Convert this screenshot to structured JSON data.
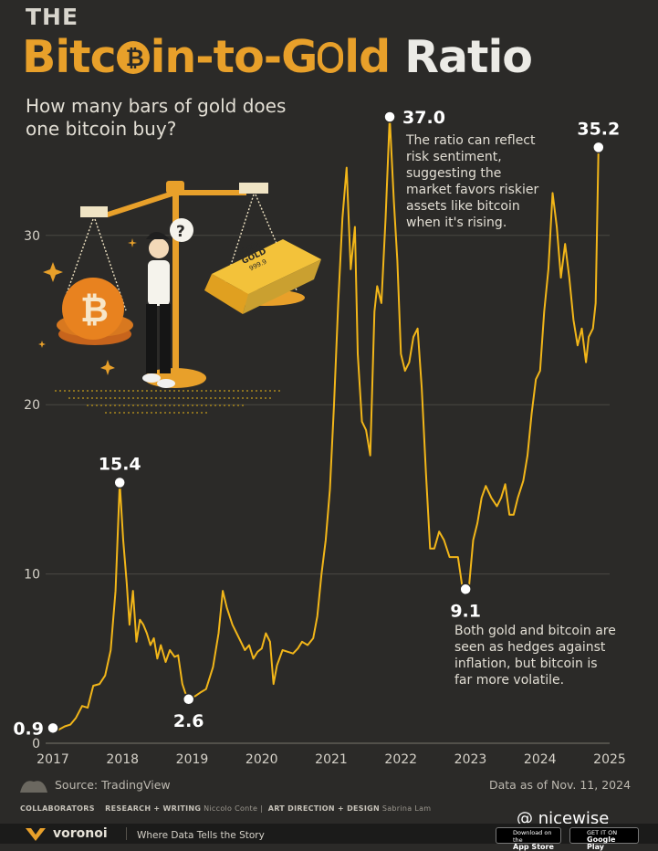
{
  "header": {
    "pre_title": "THE",
    "title_part1": "Bitc",
    "title_part2": "in-to-G",
    "title_part3": "ld",
    "title_part4": "Ratio",
    "subtitle": "How many bars of gold does one bitcoin buy?"
  },
  "chart_data": {
    "type": "line",
    "title": "The Bitcoin-to-Gold Ratio",
    "subtitle": "How many bars of gold does one bitcoin buy?",
    "xlabel": "",
    "ylabel": "",
    "xlim": [
      2017,
      2025
    ],
    "ylim": [
      0,
      37
    ],
    "x_ticks": [
      2017,
      2018,
      2019,
      2020,
      2021,
      2022,
      2023,
      2024,
      2025
    ],
    "y_ticks": [
      0,
      10,
      20,
      30
    ],
    "grid": true,
    "series": [
      {
        "name": "Bitcoin-to-Gold ratio",
        "color": "#f2b619",
        "points": [
          [
            2017.0,
            0.9
          ],
          [
            2017.08,
            0.8
          ],
          [
            2017.17,
            1.0
          ],
          [
            2017.25,
            1.1
          ],
          [
            2017.33,
            1.5
          ],
          [
            2017.42,
            2.2
          ],
          [
            2017.5,
            2.1
          ],
          [
            2017.58,
            3.4
          ],
          [
            2017.67,
            3.5
          ],
          [
            2017.75,
            4.0
          ],
          [
            2017.83,
            5.5
          ],
          [
            2017.9,
            9.0
          ],
          [
            2017.96,
            15.4
          ],
          [
            2018.01,
            12.0
          ],
          [
            2018.06,
            9.5
          ],
          [
            2018.1,
            7.0
          ],
          [
            2018.15,
            9.0
          ],
          [
            2018.2,
            6.0
          ],
          [
            2018.25,
            7.3
          ],
          [
            2018.3,
            7.0
          ],
          [
            2018.35,
            6.5
          ],
          [
            2018.4,
            5.8
          ],
          [
            2018.45,
            6.2
          ],
          [
            2018.5,
            5.0
          ],
          [
            2018.55,
            5.8
          ],
          [
            2018.62,
            4.8
          ],
          [
            2018.68,
            5.5
          ],
          [
            2018.75,
            5.1
          ],
          [
            2018.8,
            5.2
          ],
          [
            2018.86,
            3.5
          ],
          [
            2018.9,
            3.0
          ],
          [
            2018.95,
            2.6
          ],
          [
            2019.05,
            2.8
          ],
          [
            2019.12,
            3.0
          ],
          [
            2019.2,
            3.2
          ],
          [
            2019.3,
            4.5
          ],
          [
            2019.38,
            6.5
          ],
          [
            2019.44,
            9.0
          ],
          [
            2019.5,
            8.0
          ],
          [
            2019.58,
            7.0
          ],
          [
            2019.64,
            6.5
          ],
          [
            2019.7,
            6.0
          ],
          [
            2019.76,
            5.5
          ],
          [
            2019.82,
            5.8
          ],
          [
            2019.88,
            5.0
          ],
          [
            2019.94,
            5.4
          ],
          [
            2020.0,
            5.6
          ],
          [
            2020.06,
            6.5
          ],
          [
            2020.12,
            6.0
          ],
          [
            2020.17,
            3.5
          ],
          [
            2020.22,
            4.6
          ],
          [
            2020.3,
            5.5
          ],
          [
            2020.38,
            5.4
          ],
          [
            2020.45,
            5.3
          ],
          [
            2020.52,
            5.6
          ],
          [
            2020.58,
            6.0
          ],
          [
            2020.66,
            5.8
          ],
          [
            2020.74,
            6.2
          ],
          [
            2020.8,
            7.5
          ],
          [
            2020.86,
            10.0
          ],
          [
            2020.92,
            12.0
          ],
          [
            2020.98,
            15.0
          ],
          [
            2021.04,
            20.0
          ],
          [
            2021.1,
            26.0
          ],
          [
            2021.16,
            31.0
          ],
          [
            2021.22,
            34.0
          ],
          [
            2021.28,
            28.0
          ],
          [
            2021.34,
            30.5
          ],
          [
            2021.38,
            23.0
          ],
          [
            2021.44,
            19.0
          ],
          [
            2021.5,
            18.5
          ],
          [
            2021.56,
            17.0
          ],
          [
            2021.62,
            25.5
          ],
          [
            2021.66,
            27.0
          ],
          [
            2021.72,
            26.0
          ],
          [
            2021.78,
            31.0
          ],
          [
            2021.84,
            37.0
          ],
          [
            2021.9,
            32.0
          ],
          [
            2021.95,
            28.5
          ],
          [
            2022.0,
            23.0
          ],
          [
            2022.06,
            22.0
          ],
          [
            2022.12,
            22.5
          ],
          [
            2022.18,
            24.0
          ],
          [
            2022.24,
            24.5
          ],
          [
            2022.3,
            21.0
          ],
          [
            2022.36,
            16.0
          ],
          [
            2022.42,
            11.5
          ],
          [
            2022.48,
            11.5
          ],
          [
            2022.55,
            12.5
          ],
          [
            2022.62,
            12.0
          ],
          [
            2022.7,
            11.0
          ],
          [
            2022.76,
            11.0
          ],
          [
            2022.82,
            11.0
          ],
          [
            2022.88,
            9.3
          ],
          [
            2022.93,
            9.1
          ],
          [
            2022.98,
            9.3
          ],
          [
            2023.04,
            12.0
          ],
          [
            2023.1,
            13.0
          ],
          [
            2023.16,
            14.5
          ],
          [
            2023.22,
            15.2
          ],
          [
            2023.3,
            14.5
          ],
          [
            2023.38,
            14.0
          ],
          [
            2023.44,
            14.5
          ],
          [
            2023.5,
            15.3
          ],
          [
            2023.56,
            13.5
          ],
          [
            2023.62,
            13.5
          ],
          [
            2023.68,
            14.5
          ],
          [
            2023.76,
            15.5
          ],
          [
            2023.82,
            17.0
          ],
          [
            2023.88,
            19.5
          ],
          [
            2023.94,
            21.5
          ],
          [
            2024.0,
            22.0
          ],
          [
            2024.06,
            25.5
          ],
          [
            2024.12,
            28.0
          ],
          [
            2024.18,
            32.5
          ],
          [
            2024.24,
            30.5
          ],
          [
            2024.3,
            27.5
          ],
          [
            2024.36,
            29.5
          ],
          [
            2024.42,
            27.5
          ],
          [
            2024.48,
            25.0
          ],
          [
            2024.54,
            23.5
          ],
          [
            2024.6,
            24.5
          ],
          [
            2024.66,
            22.5
          ],
          [
            2024.7,
            24.0
          ],
          [
            2024.76,
            24.5
          ],
          [
            2024.8,
            26.0
          ],
          [
            2024.84,
            35.2
          ]
        ]
      }
    ],
    "annotations": [
      {
        "x": 2017.0,
        "y": 0.9,
        "label": "0.9",
        "pos": "left"
      },
      {
        "x": 2017.96,
        "y": 15.4,
        "label": "15.4",
        "pos": "above"
      },
      {
        "x": 2018.95,
        "y": 2.6,
        "label": "2.6",
        "pos": "below"
      },
      {
        "x": 2021.84,
        "y": 37.0,
        "label": "37.0",
        "pos": "right"
      },
      {
        "x": 2022.93,
        "y": 9.1,
        "label": "9.1",
        "pos": "below"
      },
      {
        "x": 2024.84,
        "y": 35.2,
        "label": "35.2",
        "pos": "above"
      }
    ],
    "notes": [
      "The ratio can reflect risk sentiment, suggesting the market favors riskier assets like bitcoin when it's rising.",
      "Both gold and bitcoin are seen as hedges against inflation, but bitcoin is far more volatile."
    ]
  },
  "note_top_lines": [
    "The ratio can reflect",
    "risk sentiment,",
    "suggesting the",
    "market favors riskier",
    "assets like bitcoin",
    "when it's rising."
  ],
  "note_bottom_lines": [
    "Both gold and bitcoin are",
    "seen as hedges against",
    "inflation, but bitcoin is",
    "far more volatile."
  ],
  "illustration": {
    "question_mark": "?",
    "bar_text_1": "FINE",
    "bar_text_2": "GOLD",
    "bar_text_3": "999.9"
  },
  "footer": {
    "source": "Source: TradingView",
    "date": "Data as of Nov. 11, 2024",
    "collab_label": "COLLABORATORS",
    "research_label": "RESEARCH + WRITING",
    "research_name": "Niccolo Conte",
    "art_label": "ART DIRECTION + DESIGN",
    "art_name": "Sabrina Lam",
    "brand": "voronoi",
    "tagline": "Where Data Tells the Story",
    "app_store_small": "Download on the",
    "app_store": "App Store",
    "google_small": "GET IT ON",
    "google": "Google Play",
    "watermark": "@ nicewise"
  },
  "colors": {
    "background": "#2b2a28",
    "line": "#f2b619",
    "accent": "#e8a02a",
    "grid": "#4a4843"
  }
}
